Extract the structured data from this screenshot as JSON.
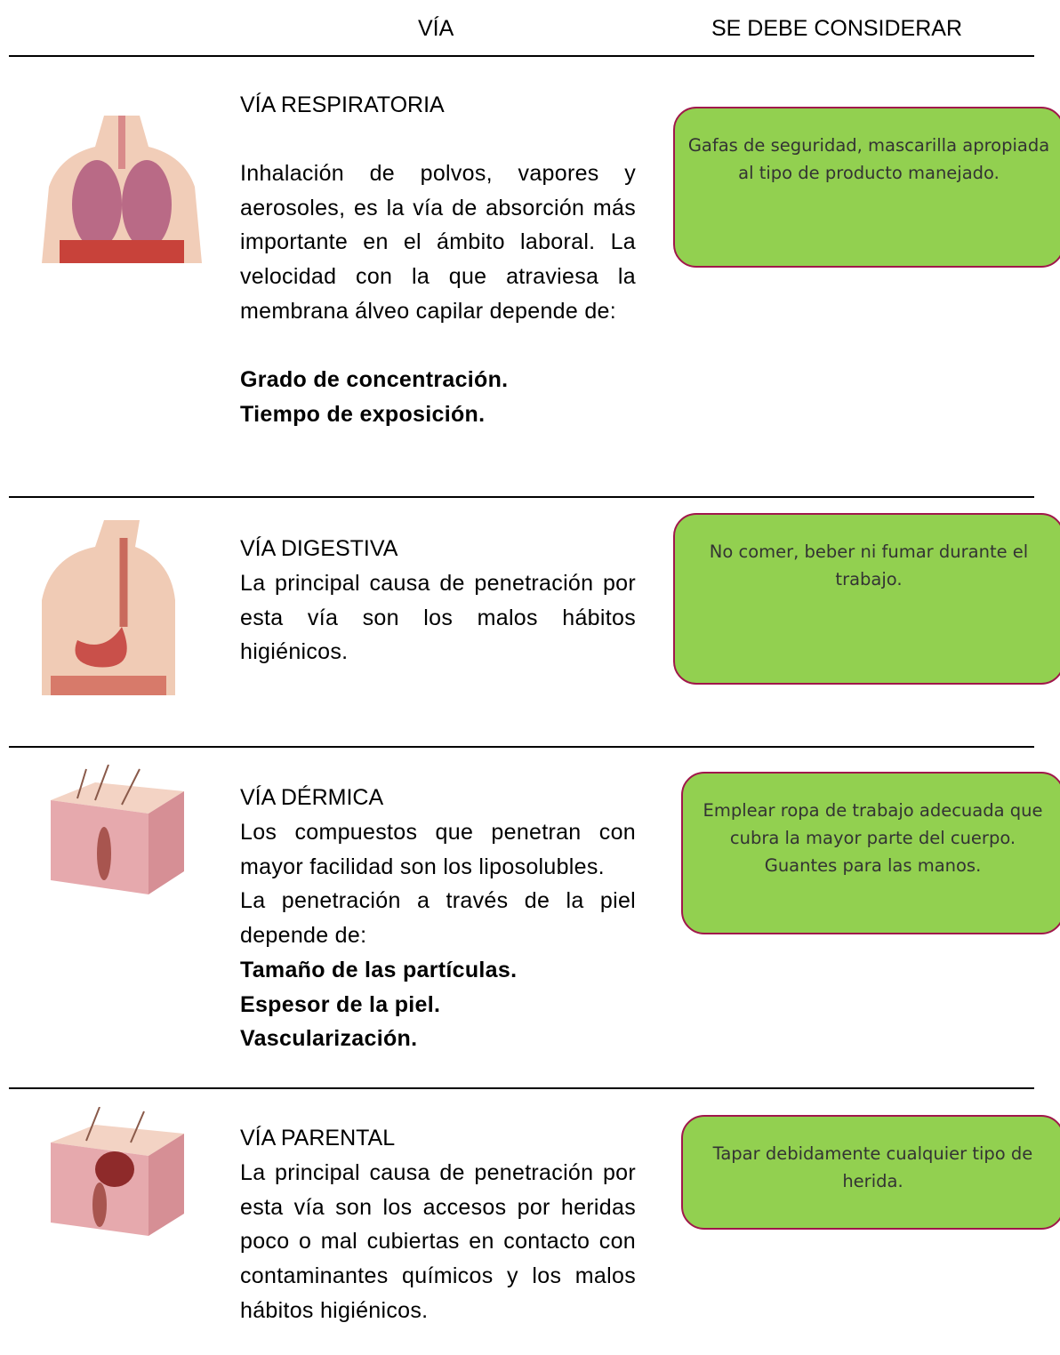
{
  "header": {
    "col1": "VÍA",
    "col2": "SE DEBE CONSIDERAR"
  },
  "rows": [
    {
      "title": "VÍA RESPIRATORIA",
      "body": [
        "Inhalación de polvos, vapores y aerosoles, es la vía de absorción más importante en el ámbito laboral. La velocidad con la que atraviesa la membrana álveo capilar depende de:"
      ],
      "bold": [
        "Grado de concentración.",
        "Tiempo de exposición."
      ],
      "advice": [
        "Gafas de seguridad, mascarilla apropiada al tipo de producto manejado."
      ]
    },
    {
      "title": "VÍA DIGESTIVA",
      "body": [
        "La principal causa de penetración por esta vía son los malos hábitos higiénicos."
      ],
      "bold": [],
      "advice": [
        "No comer, beber ni fumar durante el trabajo."
      ]
    },
    {
      "title": "VÍA DÉRMICA",
      "body": [
        "Los compuestos que penetran con mayor facilidad son los liposolubles.",
        "La penetración a través de la piel depende de:"
      ],
      "bold": [
        "Tamaño de las partículas.",
        "Espesor de la piel.",
        "Vascularización."
      ],
      "advice": [
        "Emplear ropa de trabajo adecuada que cubra la mayor parte del cuerpo.",
        "Guantes para las manos."
      ]
    },
    {
      "title": "VÍA PARENTAL",
      "body": [
        "La principal causa de penetración por esta vía son los accesos por heridas poco o mal cubiertas en contacto con contaminantes químicos y los malos hábitos higiénicos."
      ],
      "bold": [],
      "advice": [
        "Tapar debidamente cualquier tipo de herida."
      ]
    }
  ]
}
